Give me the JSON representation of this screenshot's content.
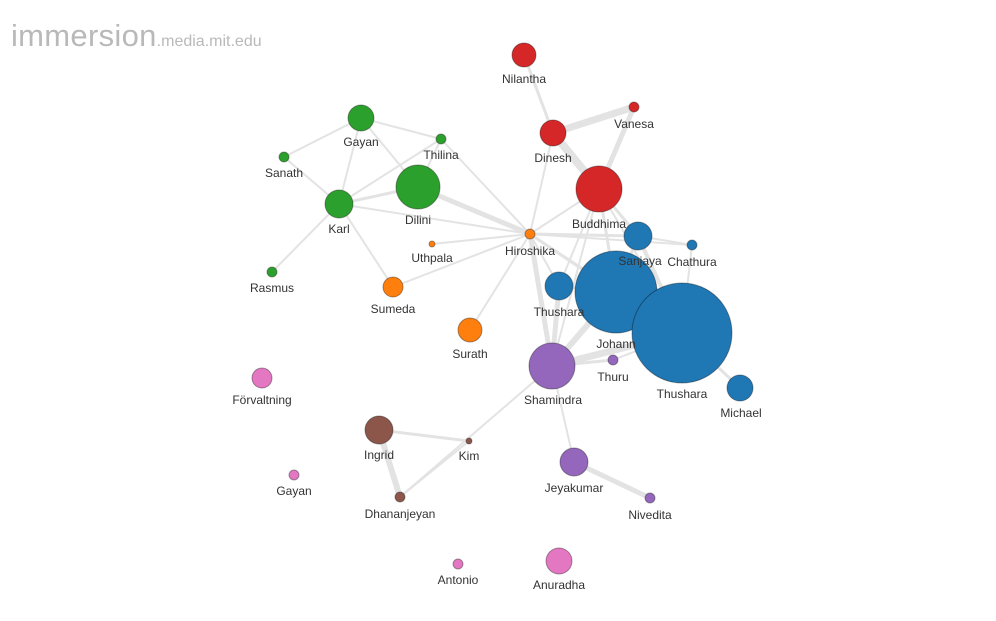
{
  "brand": {
    "main": "immersion",
    "suffix": ".media.mit.edu"
  },
  "palette": {
    "green": "#2ca02c",
    "red": "#d62728",
    "blue": "#1f77b4",
    "orange": "#ff7f0e",
    "purple": "#9467bd",
    "brown": "#8c564b",
    "pink": "#e377c2",
    "edge": "#e3e3e3"
  },
  "nodes": [
    {
      "id": "nilantha",
      "label": "Nilantha",
      "group": "red"
    },
    {
      "id": "vanesa",
      "label": "Vanesa",
      "group": "red"
    },
    {
      "id": "dinesh",
      "label": "Dinesh",
      "group": "red"
    },
    {
      "id": "buddhima",
      "label": "Buddhima",
      "group": "red"
    },
    {
      "id": "gayan1",
      "label": "Gayan",
      "group": "green"
    },
    {
      "id": "thilina",
      "label": "Thilina",
      "group": "green"
    },
    {
      "id": "sanath",
      "label": "Sanath",
      "group": "green"
    },
    {
      "id": "dilini",
      "label": "Dilini",
      "group": "green"
    },
    {
      "id": "karl",
      "label": "Karl",
      "group": "green"
    },
    {
      "id": "rasmus",
      "label": "Rasmus",
      "group": "green"
    },
    {
      "id": "uthpala",
      "label": "Uthpala",
      "group": "orange"
    },
    {
      "id": "hiroshika",
      "label": "Hiroshika",
      "group": "orange"
    },
    {
      "id": "sumeda",
      "label": "Sumeda",
      "group": "orange"
    },
    {
      "id": "surath",
      "label": "Surath",
      "group": "orange"
    },
    {
      "id": "sanjaya",
      "label": "Sanjaya",
      "group": "blue"
    },
    {
      "id": "chathura",
      "label": "Chathura",
      "group": "blue"
    },
    {
      "id": "thushara1",
      "label": "Thushara",
      "group": "blue"
    },
    {
      "id": "johann",
      "label": "Johann",
      "group": "blue"
    },
    {
      "id": "thushara2",
      "label": "Thushara",
      "group": "blue"
    },
    {
      "id": "michael",
      "label": "Michael",
      "group": "blue"
    },
    {
      "id": "shamindra",
      "label": "Shamindra",
      "group": "purple"
    },
    {
      "id": "thuru",
      "label": "Thuru",
      "group": "purple"
    },
    {
      "id": "jeyakumar",
      "label": "Jeyakumar",
      "group": "purple"
    },
    {
      "id": "nivedita",
      "label": "Nivedita",
      "group": "purple"
    },
    {
      "id": "ingrid",
      "label": "Ingrid",
      "group": "brown"
    },
    {
      "id": "kim",
      "label": "Kim",
      "group": "brown"
    },
    {
      "id": "dhananjeyan",
      "label": "Dhananjeyan",
      "group": "brown"
    },
    {
      "id": "forvaltning",
      "label": "Förvaltning",
      "group": "pink"
    },
    {
      "id": "gayan2",
      "label": "Gayan",
      "group": "pink"
    },
    {
      "id": "antonio",
      "label": "Antonio",
      "group": "pink"
    },
    {
      "id": "anuradha",
      "label": "Anuradha",
      "group": "pink"
    }
  ],
  "edges": [
    {
      "a": "nilantha",
      "b": "dinesh",
      "w": 3
    },
    {
      "a": "dinesh",
      "b": "vanesa",
      "w": 7
    },
    {
      "a": "dinesh",
      "b": "buddhima",
      "w": 8
    },
    {
      "a": "vanesa",
      "b": "buddhima",
      "w": 5
    },
    {
      "a": "dinesh",
      "b": "hiroshika",
      "w": 2
    },
    {
      "a": "buddhima",
      "b": "hiroshika",
      "w": 2
    },
    {
      "a": "buddhima",
      "b": "sanjaya",
      "w": 3
    },
    {
      "a": "buddhima",
      "b": "johann",
      "w": 3
    },
    {
      "a": "buddhima",
      "b": "thushara1",
      "w": 2
    },
    {
      "a": "buddhima",
      "b": "thushara2",
      "w": 2
    },
    {
      "a": "buddhima",
      "b": "shamindra",
      "w": 2
    },
    {
      "a": "gayan1",
      "b": "sanath",
      "w": 2
    },
    {
      "a": "gayan1",
      "b": "karl",
      "w": 2
    },
    {
      "a": "gayan1",
      "b": "dilini",
      "w": 2
    },
    {
      "a": "gayan1",
      "b": "thilina",
      "w": 2
    },
    {
      "a": "thilina",
      "b": "karl",
      "w": 2
    },
    {
      "a": "thilina",
      "b": "dilini",
      "w": 2
    },
    {
      "a": "thilina",
      "b": "hiroshika",
      "w": 2
    },
    {
      "a": "sanath",
      "b": "karl",
      "w": 2
    },
    {
      "a": "karl",
      "b": "dilini",
      "w": 3
    },
    {
      "a": "karl",
      "b": "rasmus",
      "w": 2
    },
    {
      "a": "karl",
      "b": "sumeda",
      "w": 2
    },
    {
      "a": "karl",
      "b": "hiroshika",
      "w": 2
    },
    {
      "a": "dilini",
      "b": "hiroshika",
      "w": 5
    },
    {
      "a": "uthpala",
      "b": "hiroshika",
      "w": 2
    },
    {
      "a": "sumeda",
      "b": "hiroshika",
      "w": 2
    },
    {
      "a": "surath",
      "b": "hiroshika",
      "w": 2
    },
    {
      "a": "hiroshika",
      "b": "sanjaya",
      "w": 3
    },
    {
      "a": "hiroshika",
      "b": "chathura",
      "w": 2
    },
    {
      "a": "hiroshika",
      "b": "thushara1",
      "w": 2
    },
    {
      "a": "hiroshika",
      "b": "johann",
      "w": 3
    },
    {
      "a": "hiroshika",
      "b": "thushara2",
      "w": 2
    },
    {
      "a": "hiroshika",
      "b": "shamindra",
      "w": 5
    },
    {
      "a": "sanjaya",
      "b": "chathura",
      "w": 2
    },
    {
      "a": "sanjaya",
      "b": "johann",
      "w": 3
    },
    {
      "a": "sanjaya",
      "b": "thushara2",
      "w": 4
    },
    {
      "a": "chathura",
      "b": "thushara2",
      "w": 2
    },
    {
      "a": "thushara1",
      "b": "johann",
      "w": 3
    },
    {
      "a": "thushara1",
      "b": "shamindra",
      "w": 5
    },
    {
      "a": "johann",
      "b": "thushara2",
      "w": 9
    },
    {
      "a": "johann",
      "b": "shamindra",
      "w": 6
    },
    {
      "a": "thushara2",
      "b": "shamindra",
      "w": 7
    },
    {
      "a": "thushara2",
      "b": "michael",
      "w": 3
    },
    {
      "a": "thushara2",
      "b": "thuru",
      "w": 2
    },
    {
      "a": "shamindra",
      "b": "thuru",
      "w": 3
    },
    {
      "a": "shamindra",
      "b": "jeyakumar",
      "w": 2
    },
    {
      "a": "shamindra",
      "b": "dhananjeyan",
      "w": 2
    },
    {
      "a": "jeyakumar",
      "b": "nivedita",
      "w": 5
    },
    {
      "a": "ingrid",
      "b": "kim",
      "w": 3
    },
    {
      "a": "ingrid",
      "b": "dhananjeyan",
      "w": 6
    },
    {
      "a": "kim",
      "b": "dhananjeyan",
      "w": 2
    }
  ]
}
